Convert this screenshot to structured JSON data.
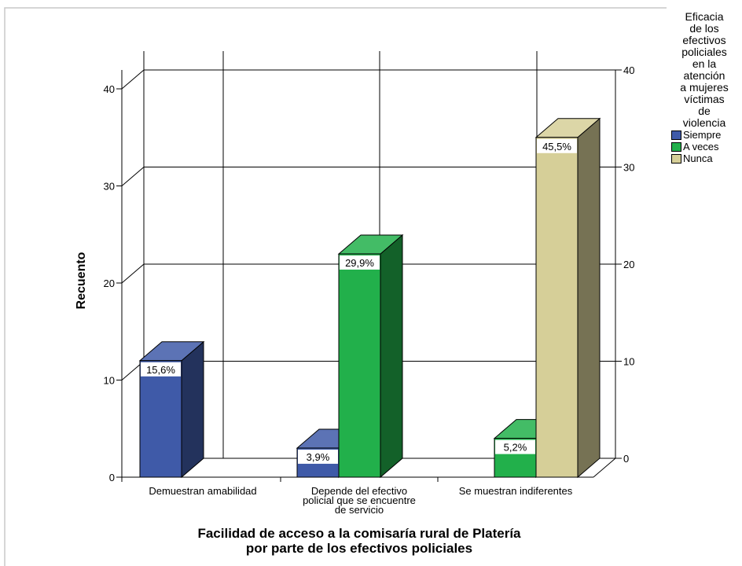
{
  "chart_data": {
    "type": "bar",
    "title": "",
    "xlabel": "Facilidad de acceso a la comisaría rural de Platería por parte de los efectivos policiales",
    "ylabel": "Recuento",
    "ylim": [
      0,
      40
    ],
    "yticks": [
      0,
      10,
      20,
      30,
      40
    ],
    "grid": true,
    "categories": [
      [
        "Demuestran amabilidad"
      ],
      [
        "Depende del efectivo",
        "policial que se encuentre",
        "de servicio"
      ],
      [
        "Se muestran indiferentes"
      ]
    ],
    "legend_title": "Eficacia de los efectivos policiales en la atención a mujeres víctimas de violencia",
    "legend_title_lines": [
      "Eficacia",
      "de los",
      "efectivos",
      "policiales",
      "en la",
      "atención",
      "a mujeres",
      "víctimas",
      "de",
      "violencia"
    ],
    "legend_position": "top-right",
    "series": [
      {
        "name": "Siempre",
        "color": "#3f5aa8",
        "values": [
          12,
          3,
          null
        ],
        "labels": [
          "15,6%",
          "3,9%",
          ""
        ]
      },
      {
        "name": "A veces",
        "color": "#22b04b",
        "values": [
          null,
          23,
          4
        ],
        "labels": [
          "",
          "29,9%",
          "5,2%"
        ]
      },
      {
        "name": "Nunca",
        "color": "#d6cf98",
        "values": [
          null,
          null,
          35
        ],
        "labels": [
          "",
          "",
          "45,5%"
        ]
      }
    ]
  }
}
